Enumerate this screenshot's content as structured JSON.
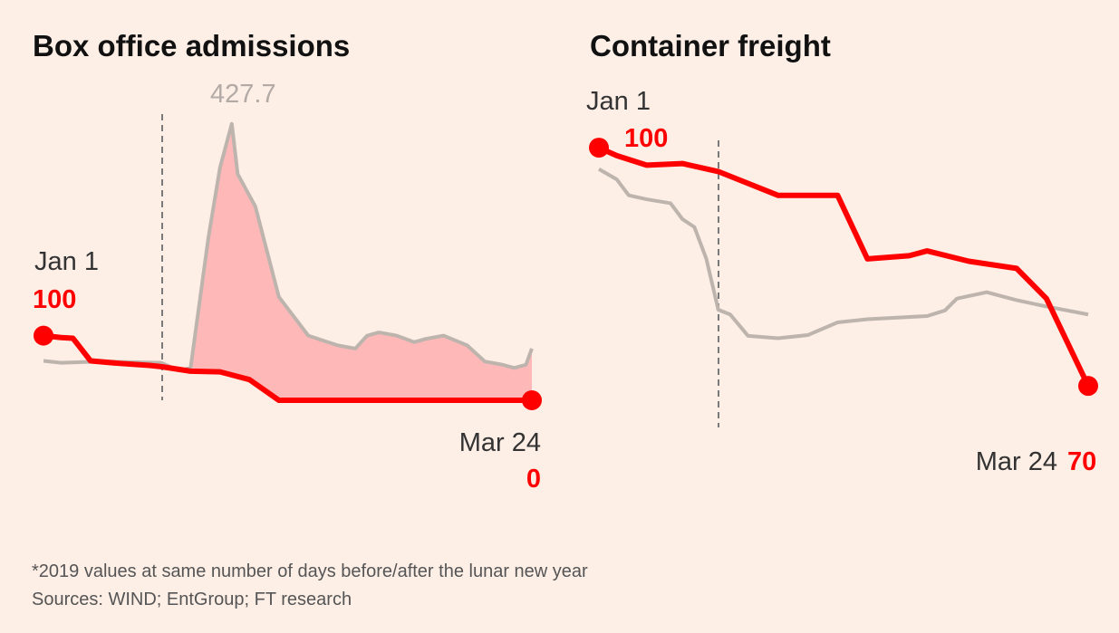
{
  "colors": {
    "background": "#fdeee6",
    "series_2020": "#ff0000",
    "series_2019": "#bdb4ae",
    "gap_fill": "#ffb8b8",
    "marker_line": "#7a7a7a"
  },
  "chart_data": [
    {
      "type": "line",
      "title": "Box office admissions",
      "x_range": [
        "Jan 1",
        "Mar 24"
      ],
      "ylim": [
        0,
        440
      ],
      "marker_label": "",
      "series": [
        {
          "role": "2020",
          "x": [
            0,
            3,
            5,
            8,
            13,
            18,
            20,
            25,
            30,
            35,
            40,
            50,
            60,
            70,
            83
          ],
          "y": [
            100,
            97,
            96,
            61,
            57,
            54,
            52,
            45,
            44,
            32,
            0,
            0,
            0,
            0,
            0
          ]
        },
        {
          "role": "2019",
          "x": [
            0,
            3,
            10,
            20,
            23,
            25,
            28,
            30,
            32,
            33,
            36,
            40,
            45,
            50,
            53,
            55,
            57,
            60,
            63,
            65,
            68,
            72,
            75,
            78,
            80,
            82,
            83
          ],
          "y": [
            61,
            58,
            60,
            58,
            46,
            50,
            250,
            360,
            427.7,
            350,
            300,
            160,
            100,
            85,
            80,
            100,
            105,
            100,
            90,
            95,
            100,
            85,
            60,
            55,
            50,
            55,
            80
          ]
        }
      ],
      "labels": {
        "start_date": "Jan 1",
        "start_value": "100",
        "peak_value": "427.7",
        "end_date": "Mar 24",
        "end_value": "0"
      }
    },
    {
      "type": "line",
      "title": "Container freight",
      "x_range": [
        "Jan 1",
        "Mar 24"
      ],
      "ylim": [
        65,
        104
      ],
      "marker_label": "",
      "series": [
        {
          "role": "2020",
          "x": [
            0,
            3,
            8,
            14,
            20,
            30,
            40,
            45,
            52,
            55,
            62,
            70,
            75,
            82
          ],
          "y": [
            100,
            99,
            97.8,
            98,
            97,
            94,
            94,
            86,
            86.4,
            87,
            85.7,
            84.8,
            81,
            70
          ]
        },
        {
          "role": "2019",
          "x": [
            0,
            3,
            5,
            8,
            12,
            14,
            16,
            18,
            20,
            22,
            25,
            30,
            35,
            40,
            45,
            50,
            55,
            58,
            60,
            65,
            70,
            75,
            82
          ],
          "y": [
            97.3,
            96,
            94,
            93.5,
            93,
            91,
            90,
            86,
            79.6,
            79,
            76.3,
            76,
            76.4,
            78,
            78.4,
            78.6,
            78.8,
            79.5,
            81,
            81.8,
            80.8,
            80,
            79
          ]
        }
      ],
      "labels": {
        "start_date": "Jan 1",
        "start_value": "100",
        "end_date": "Mar 24",
        "end_value": "70"
      }
    }
  ],
  "footnotes": {
    "note": "*2019 values at same number of days before/after the lunar new year",
    "sources": "Sources: WIND; EntGroup; FT research"
  }
}
